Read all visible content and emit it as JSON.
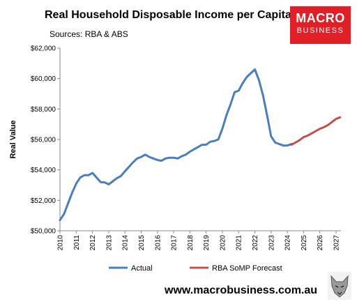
{
  "header": {
    "title": "Real Household Disposable Income per Capita",
    "subtitle": "Sources: RBA & ABS"
  },
  "logo": {
    "line1": "MACRO",
    "line2": "BUSINESS",
    "color": "#e01f26"
  },
  "footer": {
    "url": "www.macrobusiness.com.au",
    "mascot_icon": "wolf-icon"
  },
  "chart_data": {
    "type": "line",
    "title": "Real Household Disposable Income per Capita",
    "xlabel": "",
    "ylabel": "Real Value",
    "xlim": [
      2010,
      2027.3
    ],
    "ylim": [
      50000,
      62000
    ],
    "x_ticks": [
      "2010",
      "2011",
      "2012",
      "2013",
      "2014",
      "2015",
      "2016",
      "2017",
      "2018",
      "2019",
      "2020",
      "2021",
      "2022",
      "2023",
      "2024",
      "2025",
      "2026",
      "2027"
    ],
    "y_ticks": [
      {
        "value": 50000,
        "label": "$50,000"
      },
      {
        "value": 52000,
        "label": "$52,000"
      },
      {
        "value": 54000,
        "label": "$54,000"
      },
      {
        "value": 56000,
        "label": "$56,000"
      },
      {
        "value": 58000,
        "label": "$58,000"
      },
      {
        "value": 60000,
        "label": "$60,000"
      },
      {
        "value": 62000,
        "label": "$62,000"
      }
    ],
    "grid": false,
    "legend_position": "bottom",
    "series": [
      {
        "name": "Actual",
        "color": "#4a7ebb",
        "x": [
          2010.0,
          2010.25,
          2010.5,
          2010.75,
          2011.0,
          2011.25,
          2011.5,
          2011.75,
          2012.0,
          2012.25,
          2012.5,
          2012.75,
          2013.0,
          2013.25,
          2013.5,
          2013.75,
          2014.0,
          2014.25,
          2014.5,
          2014.75,
          2015.0,
          2015.25,
          2015.5,
          2015.75,
          2016.0,
          2016.25,
          2016.5,
          2016.75,
          2017.0,
          2017.25,
          2017.5,
          2017.75,
          2018.0,
          2018.25,
          2018.5,
          2018.75,
          2019.0,
          2019.25,
          2019.5,
          2019.75,
          2020.0,
          2020.25,
          2020.5,
          2020.75,
          2021.0,
          2021.25,
          2021.5,
          2021.75,
          2022.0,
          2022.25,
          2022.5,
          2022.75,
          2023.0,
          2023.25,
          2023.5,
          2023.75,
          2024.0,
          2024.25
        ],
        "values": [
          50700,
          51100,
          51800,
          52500,
          53100,
          53500,
          53650,
          53650,
          53800,
          53500,
          53200,
          53180,
          53050,
          53250,
          53450,
          53600,
          53900,
          54200,
          54500,
          54750,
          54850,
          55000,
          54850,
          54750,
          54650,
          54600,
          54750,
          54800,
          54800,
          54750,
          54900,
          55000,
          55200,
          55350,
          55500,
          55650,
          55650,
          55850,
          55900,
          56000,
          56700,
          57600,
          58300,
          59100,
          59200,
          59700,
          60100,
          60350,
          60600,
          59900,
          58900,
          57600,
          56200,
          55800,
          55700,
          55600,
          55600,
          55700
        ]
      },
      {
        "name": "RBA SoMP Forecast",
        "color": "#c0504d",
        "x": [
          2024.25,
          2024.5,
          2024.75,
          2025.0,
          2025.25,
          2025.5,
          2025.75,
          2026.0,
          2026.25,
          2026.5,
          2026.75,
          2027.0,
          2027.25
        ],
        "values": [
          55650,
          55800,
          55950,
          56150,
          56250,
          56400,
          56550,
          56700,
          56800,
          56950,
          57150,
          57350,
          57450
        ]
      }
    ]
  }
}
